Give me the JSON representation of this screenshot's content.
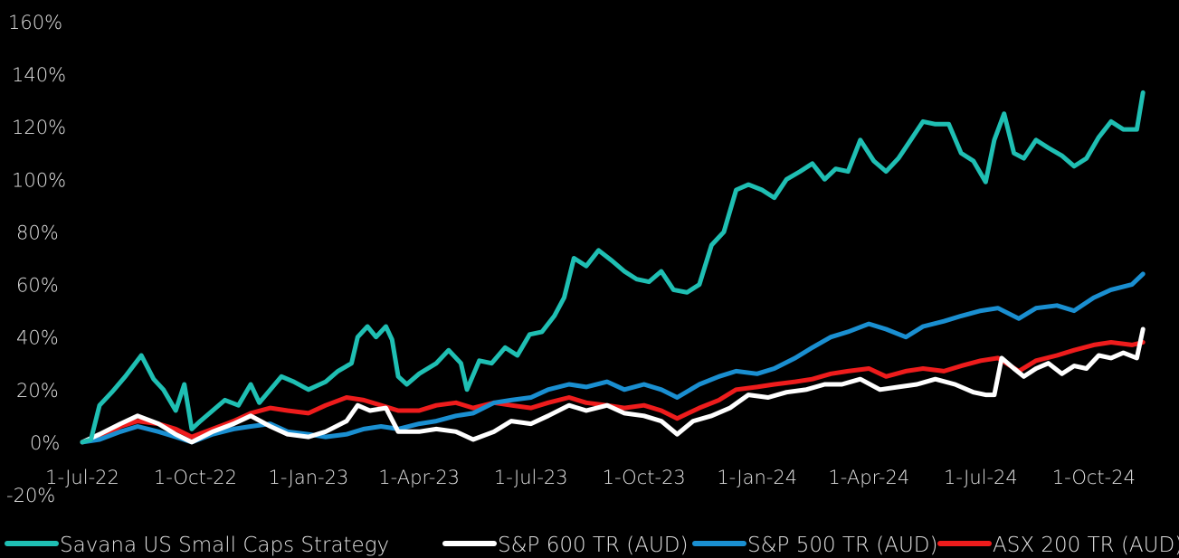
{
  "chart_data": {
    "type": "line",
    "title": "",
    "xlabel": "",
    "ylabel": "",
    "ylim": [
      -20,
      160
    ],
    "y_ticks": [
      "160%",
      "140%",
      "120%",
      "100%",
      "80%",
      "60%",
      "40%",
      "20%",
      "0%",
      "-20%"
    ],
    "x_ticks": [
      "1-Jul-22",
      "1-Oct-22",
      "1-Jan-23",
      "1-Apr-23",
      "1-Jul-23",
      "1-Oct-23",
      "1-Jan-24",
      "1-Apr-24",
      "1-Jul-24",
      "1-Oct-24"
    ],
    "x_tick_dates": [
      "2022-07-01",
      "2022-10-01",
      "2023-01-01",
      "2023-04-01",
      "2023-07-01",
      "2023-10-01",
      "2024-01-01",
      "2024-04-01",
      "2024-07-01",
      "2024-10-01"
    ],
    "x_range": [
      "2022-07-01",
      "2024-11-15"
    ],
    "grid": false,
    "legend_position": "bottom",
    "series": [
      {
        "name": "Savana US Small Caps Strategy",
        "color": "#1fbfb3",
        "points": [
          [
            "2022-07-01",
            0
          ],
          [
            "2022-07-08",
            1
          ],
          [
            "2022-07-15",
            14
          ],
          [
            "2022-07-25",
            19
          ],
          [
            "2022-08-05",
            25
          ],
          [
            "2022-08-18",
            33
          ],
          [
            "2022-08-28",
            24
          ],
          [
            "2022-09-05",
            20
          ],
          [
            "2022-09-15",
            12
          ],
          [
            "2022-09-22",
            22
          ],
          [
            "2022-09-28",
            5
          ],
          [
            "2022-10-05",
            8
          ],
          [
            "2022-10-15",
            12
          ],
          [
            "2022-10-25",
            16
          ],
          [
            "2022-11-05",
            14
          ],
          [
            "2022-11-15",
            22
          ],
          [
            "2022-11-22",
            15
          ],
          [
            "2022-12-01",
            20
          ],
          [
            "2022-12-10",
            25
          ],
          [
            "2022-12-20",
            23
          ],
          [
            "2023-01-01",
            20
          ],
          [
            "2023-01-15",
            23
          ],
          [
            "2023-01-25",
            27
          ],
          [
            "2023-02-05",
            30
          ],
          [
            "2023-02-10",
            40
          ],
          [
            "2023-02-18",
            44
          ],
          [
            "2023-02-25",
            40
          ],
          [
            "2023-03-05",
            44
          ],
          [
            "2023-03-10",
            39
          ],
          [
            "2023-03-15",
            25
          ],
          [
            "2023-03-22",
            22
          ],
          [
            "2023-04-01",
            26
          ],
          [
            "2023-04-15",
            30
          ],
          [
            "2023-04-25",
            35
          ],
          [
            "2023-05-05",
            30
          ],
          [
            "2023-05-10",
            20
          ],
          [
            "2023-05-20",
            31
          ],
          [
            "2023-05-30",
            30
          ],
          [
            "2023-06-10",
            36
          ],
          [
            "2023-06-20",
            33
          ],
          [
            "2023-06-30",
            41
          ],
          [
            "2023-07-10",
            42
          ],
          [
            "2023-07-20",
            48
          ],
          [
            "2023-07-28",
            55
          ],
          [
            "2023-08-05",
            70
          ],
          [
            "2023-08-15",
            67
          ],
          [
            "2023-08-25",
            73
          ],
          [
            "2023-09-05",
            69
          ],
          [
            "2023-09-15",
            65
          ],
          [
            "2023-09-25",
            62
          ],
          [
            "2023-10-05",
            61
          ],
          [
            "2023-10-15",
            65
          ],
          [
            "2023-10-25",
            58
          ],
          [
            "2023-11-05",
            57
          ],
          [
            "2023-11-15",
            60
          ],
          [
            "2023-11-25",
            75
          ],
          [
            "2023-12-05",
            80
          ],
          [
            "2023-12-15",
            96
          ],
          [
            "2023-12-25",
            98
          ],
          [
            "2024-01-05",
            96
          ],
          [
            "2024-01-15",
            93
          ],
          [
            "2024-01-25",
            100
          ],
          [
            "2024-02-05",
            103
          ],
          [
            "2024-02-15",
            106
          ],
          [
            "2024-02-25",
            100
          ],
          [
            "2024-03-05",
            104
          ],
          [
            "2024-03-15",
            103
          ],
          [
            "2024-03-25",
            115
          ],
          [
            "2024-04-05",
            107
          ],
          [
            "2024-04-15",
            103
          ],
          [
            "2024-04-25",
            108
          ],
          [
            "2024-05-05",
            115
          ],
          [
            "2024-05-15",
            122
          ],
          [
            "2024-05-25",
            121
          ],
          [
            "2024-06-05",
            121
          ],
          [
            "2024-06-15",
            110
          ],
          [
            "2024-06-25",
            107
          ],
          [
            "2024-07-05",
            99
          ],
          [
            "2024-07-12",
            115
          ],
          [
            "2024-07-20",
            125
          ],
          [
            "2024-07-28",
            110
          ],
          [
            "2024-08-05",
            108
          ],
          [
            "2024-08-15",
            115
          ],
          [
            "2024-08-25",
            112
          ],
          [
            "2024-09-05",
            109
          ],
          [
            "2024-09-15",
            105
          ],
          [
            "2024-09-25",
            108
          ],
          [
            "2024-10-05",
            116
          ],
          [
            "2024-10-15",
            122
          ],
          [
            "2024-10-25",
            119
          ],
          [
            "2024-11-05",
            119
          ],
          [
            "2024-11-10",
            133
          ]
        ]
      },
      {
        "name": "S&P 600 TR (AUD)",
        "color": "#ffffff",
        "points": [
          [
            "2022-07-01",
            0
          ],
          [
            "2022-07-15",
            3
          ],
          [
            "2022-08-01",
            7
          ],
          [
            "2022-08-15",
            10
          ],
          [
            "2022-09-01",
            7
          ],
          [
            "2022-09-15",
            3
          ],
          [
            "2022-09-28",
            0
          ],
          [
            "2022-10-15",
            4
          ],
          [
            "2022-11-01",
            7
          ],
          [
            "2022-11-15",
            10
          ],
          [
            "2022-12-01",
            6
          ],
          [
            "2022-12-15",
            3
          ],
          [
            "2023-01-01",
            2
          ],
          [
            "2023-01-15",
            4
          ],
          [
            "2023-02-01",
            8
          ],
          [
            "2023-02-10",
            14
          ],
          [
            "2023-02-20",
            12
          ],
          [
            "2023-03-05",
            13
          ],
          [
            "2023-03-15",
            4
          ],
          [
            "2023-04-01",
            4
          ],
          [
            "2023-04-15",
            5
          ],
          [
            "2023-05-01",
            4
          ],
          [
            "2023-05-15",
            1
          ],
          [
            "2023-06-01",
            4
          ],
          [
            "2023-06-15",
            8
          ],
          [
            "2023-07-01",
            7
          ],
          [
            "2023-07-15",
            10
          ],
          [
            "2023-08-01",
            14
          ],
          [
            "2023-08-15",
            12
          ],
          [
            "2023-09-01",
            14
          ],
          [
            "2023-09-15",
            11
          ],
          [
            "2023-10-01",
            10
          ],
          [
            "2023-10-15",
            8
          ],
          [
            "2023-10-28",
            3
          ],
          [
            "2023-11-10",
            8
          ],
          [
            "2023-11-25",
            10
          ],
          [
            "2023-12-10",
            13
          ],
          [
            "2023-12-25",
            18
          ],
          [
            "2024-01-10",
            17
          ],
          [
            "2024-01-25",
            19
          ],
          [
            "2024-02-10",
            20
          ],
          [
            "2024-02-25",
            22
          ],
          [
            "2024-03-10",
            22
          ],
          [
            "2024-03-25",
            24
          ],
          [
            "2024-04-10",
            20
          ],
          [
            "2024-04-25",
            21
          ],
          [
            "2024-05-10",
            22
          ],
          [
            "2024-05-25",
            24
          ],
          [
            "2024-06-10",
            22
          ],
          [
            "2024-06-25",
            19
          ],
          [
            "2024-07-05",
            18
          ],
          [
            "2024-07-12",
            18
          ],
          [
            "2024-07-18",
            32
          ],
          [
            "2024-07-28",
            28
          ],
          [
            "2024-08-05",
            25
          ],
          [
            "2024-08-15",
            28
          ],
          [
            "2024-08-25",
            30
          ],
          [
            "2024-09-05",
            26
          ],
          [
            "2024-09-15",
            29
          ],
          [
            "2024-09-25",
            28
          ],
          [
            "2024-10-05",
            33
          ],
          [
            "2024-10-15",
            32
          ],
          [
            "2024-10-25",
            34
          ],
          [
            "2024-11-05",
            32
          ],
          [
            "2024-11-10",
            43
          ]
        ]
      },
      {
        "name": "S&P 500 TR (AUD)",
        "color": "#1a8fd1",
        "points": [
          [
            "2022-07-01",
            0
          ],
          [
            "2022-07-15",
            1
          ],
          [
            "2022-08-01",
            4
          ],
          [
            "2022-08-15",
            6
          ],
          [
            "2022-09-01",
            4
          ],
          [
            "2022-09-15",
            2
          ],
          [
            "2022-09-28",
            0
          ],
          [
            "2022-10-15",
            3
          ],
          [
            "2022-11-01",
            5
          ],
          [
            "2022-11-15",
            6
          ],
          [
            "2022-12-01",
            7
          ],
          [
            "2022-12-15",
            4
          ],
          [
            "2023-01-01",
            3
          ],
          [
            "2023-01-15",
            2
          ],
          [
            "2023-02-01",
            3
          ],
          [
            "2023-02-15",
            5
          ],
          [
            "2023-03-01",
            6
          ],
          [
            "2023-03-15",
            5
          ],
          [
            "2023-04-01",
            7
          ],
          [
            "2023-04-15",
            8
          ],
          [
            "2023-05-01",
            10
          ],
          [
            "2023-05-15",
            11
          ],
          [
            "2023-06-01",
            15
          ],
          [
            "2023-06-15",
            16
          ],
          [
            "2023-07-01",
            17
          ],
          [
            "2023-07-15",
            20
          ],
          [
            "2023-08-01",
            22
          ],
          [
            "2023-08-15",
            21
          ],
          [
            "2023-09-01",
            23
          ],
          [
            "2023-09-15",
            20
          ],
          [
            "2023-10-01",
            22
          ],
          [
            "2023-10-15",
            20
          ],
          [
            "2023-10-28",
            17
          ],
          [
            "2023-11-15",
            22
          ],
          [
            "2023-12-01",
            25
          ],
          [
            "2023-12-15",
            27
          ],
          [
            "2024-01-01",
            26
          ],
          [
            "2024-01-15",
            28
          ],
          [
            "2024-02-01",
            32
          ],
          [
            "2024-02-15",
            36
          ],
          [
            "2024-03-01",
            40
          ],
          [
            "2024-03-15",
            42
          ],
          [
            "2024-04-01",
            45
          ],
          [
            "2024-04-15",
            43
          ],
          [
            "2024-05-01",
            40
          ],
          [
            "2024-05-15",
            44
          ],
          [
            "2024-06-01",
            46
          ],
          [
            "2024-06-15",
            48
          ],
          [
            "2024-07-01",
            50
          ],
          [
            "2024-07-15",
            51
          ],
          [
            "2024-08-01",
            47
          ],
          [
            "2024-08-15",
            51
          ],
          [
            "2024-09-01",
            52
          ],
          [
            "2024-09-15",
            50
          ],
          [
            "2024-10-01",
            55
          ],
          [
            "2024-10-15",
            58
          ],
          [
            "2024-11-01",
            60
          ],
          [
            "2024-11-10",
            64
          ]
        ]
      },
      {
        "name": "ASX 200 TR (AUD)",
        "color": "#ee1c1c",
        "points": [
          [
            "2022-07-01",
            0
          ],
          [
            "2022-07-15",
            2
          ],
          [
            "2022-08-01",
            6
          ],
          [
            "2022-08-15",
            8
          ],
          [
            "2022-09-01",
            7
          ],
          [
            "2022-09-15",
            5
          ],
          [
            "2022-09-28",
            2
          ],
          [
            "2022-10-15",
            5
          ],
          [
            "2022-11-01",
            8
          ],
          [
            "2022-11-15",
            11
          ],
          [
            "2022-12-01",
            13
          ],
          [
            "2022-12-15",
            12
          ],
          [
            "2023-01-01",
            11
          ],
          [
            "2023-01-15",
            14
          ],
          [
            "2023-02-01",
            17
          ],
          [
            "2023-02-15",
            16
          ],
          [
            "2023-03-01",
            14
          ],
          [
            "2023-03-15",
            12
          ],
          [
            "2023-04-01",
            12
          ],
          [
            "2023-04-15",
            14
          ],
          [
            "2023-05-01",
            15
          ],
          [
            "2023-05-15",
            13
          ],
          [
            "2023-06-01",
            15
          ],
          [
            "2023-06-15",
            14
          ],
          [
            "2023-07-01",
            13
          ],
          [
            "2023-07-15",
            15
          ],
          [
            "2023-08-01",
            17
          ],
          [
            "2023-08-15",
            15
          ],
          [
            "2023-09-01",
            14
          ],
          [
            "2023-09-15",
            13
          ],
          [
            "2023-10-01",
            14
          ],
          [
            "2023-10-15",
            12
          ],
          [
            "2023-10-28",
            9
          ],
          [
            "2023-11-15",
            13
          ],
          [
            "2023-12-01",
            16
          ],
          [
            "2023-12-15",
            20
          ],
          [
            "2024-01-01",
            21
          ],
          [
            "2024-01-15",
            22
          ],
          [
            "2024-02-01",
            23
          ],
          [
            "2024-02-15",
            24
          ],
          [
            "2024-03-01",
            26
          ],
          [
            "2024-03-15",
            27
          ],
          [
            "2024-04-01",
            28
          ],
          [
            "2024-04-15",
            25
          ],
          [
            "2024-05-01",
            27
          ],
          [
            "2024-05-15",
            28
          ],
          [
            "2024-06-01",
            27
          ],
          [
            "2024-06-15",
            29
          ],
          [
            "2024-07-01",
            31
          ],
          [
            "2024-07-15",
            32
          ],
          [
            "2024-08-01",
            27
          ],
          [
            "2024-08-15",
            31
          ],
          [
            "2024-09-01",
            33
          ],
          [
            "2024-09-15",
            35
          ],
          [
            "2024-10-01",
            37
          ],
          [
            "2024-10-15",
            38
          ],
          [
            "2024-11-01",
            37
          ],
          [
            "2024-11-10",
            38
          ]
        ]
      }
    ]
  }
}
